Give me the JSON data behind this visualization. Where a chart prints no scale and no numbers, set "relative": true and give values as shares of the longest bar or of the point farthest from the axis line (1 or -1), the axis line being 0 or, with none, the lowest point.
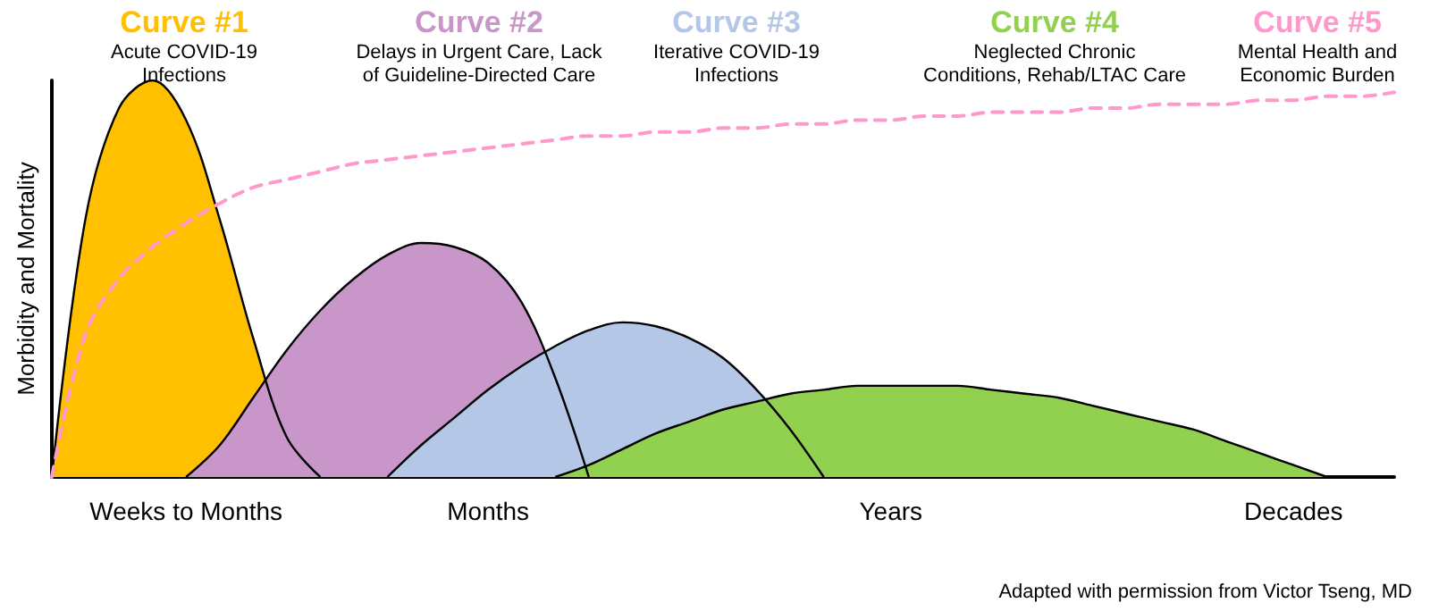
{
  "chart_data": {
    "type": "area",
    "relative": true,
    "ylabel": "Morbidity and Mortality",
    "categories": [
      null,
      null,
      null,
      null,
      "Weeks to Months",
      null,
      null,
      null,
      null,
      null,
      null,
      null,
      null,
      "Months",
      null,
      null,
      null,
      null,
      null,
      null,
      null,
      null,
      null,
      null,
      null,
      "Years",
      null,
      null,
      null,
      null,
      null,
      null,
      null,
      null,
      null,
      null,
      null,
      "Decades",
      null,
      null,
      null
    ],
    "tick_labels": "x",
    "grid": false,
    "legend": false,
    "series": [
      {
        "name": "Curve #1",
        "color": "#ffc000",
        "values": [
          0,
          0.65,
          0.93,
          1,
          0.9,
          0.65,
          0.35,
          0.1,
          0,
          null,
          null,
          null,
          null,
          null,
          null,
          null,
          null,
          null,
          null,
          null,
          null,
          null,
          null,
          null,
          null,
          null,
          null,
          null,
          null,
          null,
          null,
          null,
          null,
          null,
          null,
          null,
          null,
          null,
          null,
          null,
          null
        ]
      },
      {
        "name": "Curve #2",
        "color": "#c896c8",
        "values": [
          null,
          null,
          null,
          null,
          0,
          0.08,
          0.2,
          0.32,
          0.42,
          0.5,
          0.56,
          0.59,
          0.58,
          0.54,
          0.44,
          0.25,
          0,
          null,
          null,
          null,
          null,
          null,
          null,
          null,
          null,
          null,
          null,
          null,
          null,
          null,
          null,
          null,
          null,
          null,
          null,
          null,
          null,
          null,
          null,
          null,
          null
        ]
      },
      {
        "name": "Curve #3",
        "color": "#b4c7e7",
        "values": [
          null,
          null,
          null,
          null,
          null,
          null,
          null,
          null,
          null,
          null,
          0,
          0.08,
          0.15,
          0.22,
          0.28,
          0.33,
          0.37,
          0.39,
          0.38,
          0.35,
          0.3,
          0.22,
          0.12,
          0,
          null,
          null,
          null,
          null,
          null,
          null,
          null,
          null,
          null,
          null,
          null,
          null,
          null,
          null,
          null,
          null,
          null
        ]
      },
      {
        "name": "Curve #4",
        "color": "#92d050",
        "values": [
          null,
          null,
          null,
          null,
          null,
          null,
          null,
          null,
          null,
          null,
          null,
          null,
          null,
          null,
          null,
          0,
          0.03,
          0.07,
          0.11,
          0.14,
          0.17,
          0.19,
          0.21,
          0.22,
          0.23,
          0.23,
          0.23,
          0.23,
          0.22,
          0.21,
          0.2,
          0.18,
          0.16,
          0.14,
          0.12,
          0.09,
          0.06,
          0.03,
          0,
          null,
          null
        ]
      },
      {
        "name": "Curve #5",
        "type": "line",
        "line_style": "dashed",
        "color": "#ff99cc",
        "values": [
          0,
          0.36,
          0.5,
          0.58,
          0.64,
          0.69,
          0.73,
          0.75,
          0.77,
          0.79,
          0.8,
          0.81,
          0.82,
          0.83,
          0.84,
          0.85,
          0.86,
          0.86,
          0.87,
          0.87,
          0.88,
          0.88,
          0.89,
          0.89,
          0.9,
          0.9,
          0.91,
          0.91,
          0.92,
          0.92,
          0.92,
          0.93,
          0.93,
          0.94,
          0.94,
          0.94,
          0.95,
          0.95,
          0.96,
          0.96,
          0.97
        ]
      }
    ],
    "annotations": [
      "Acute COVID-19\nInfections",
      "Delays in Urgent Care, Lack\nof Guideline-Directed Care",
      "Iterative COVID-19\nInfections",
      "Neglected Chronic\nConditions, Rehab/LTAC Care",
      "Mental Health and\nEconomic Burden",
      "Adapted with permission from Victor Tseng, MD"
    ]
  }
}
